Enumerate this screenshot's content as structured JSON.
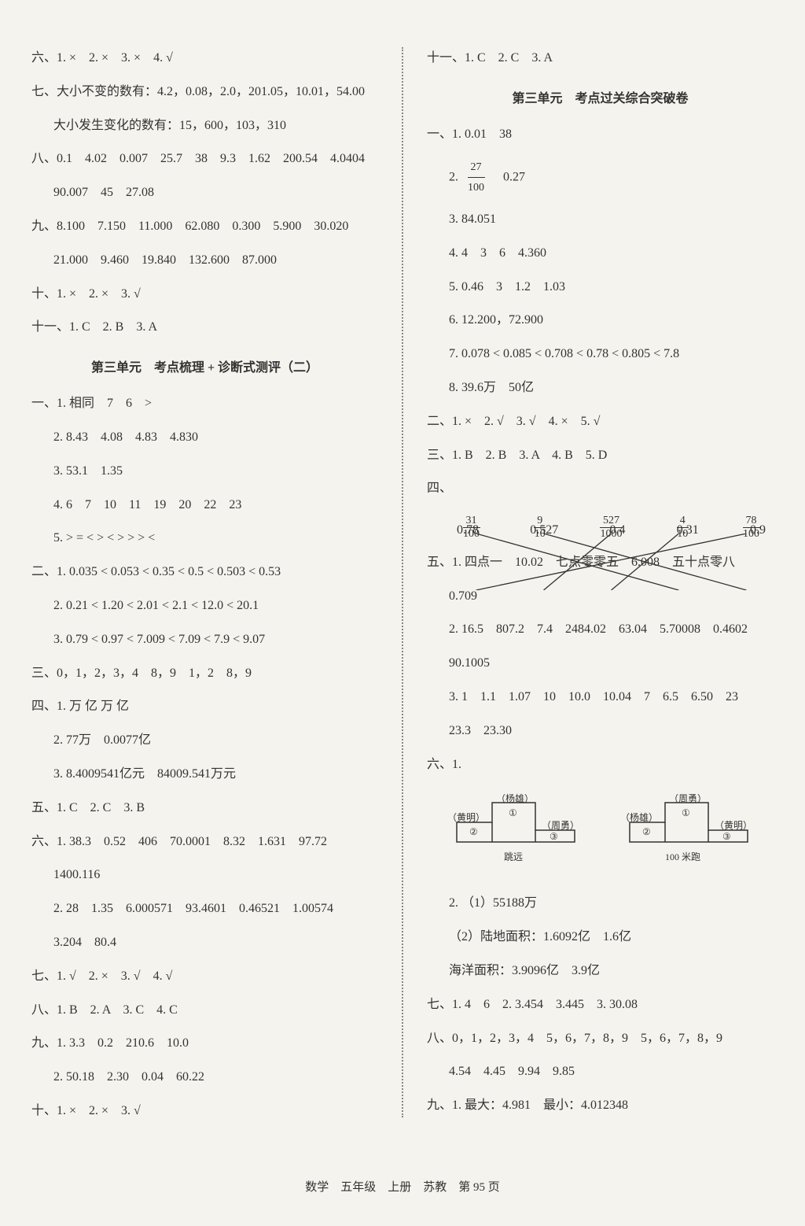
{
  "left": {
    "l1": "六、1. ×　2. ×　3. ×　4. √",
    "l2": "七、大小不变的数有：4.2，0.08，2.0，201.05，10.01，54.00",
    "l3": "大小发生变化的数有：15，600，103，310",
    "l4": "八、0.1　4.02　0.007　25.7　38　9.3　1.62　200.54　4.0404",
    "l5": "90.007　45　27.08",
    "l6": "九、8.100　7.150　11.000　62.080　0.300　5.900　30.020",
    "l7": "21.000　9.460　19.840　132.600　87.000",
    "l8": "十、1. ×　2. ×　3. √",
    "l9": "十一、1. C　2. B　3. A",
    "title1": "第三单元　考点梳理 + 诊断式测评（二）",
    "l10": "一、1. 相同　7　6　>",
    "l11": "2. 8.43　4.08　4.83　4.830",
    "l12": "3. 53.1　1.35",
    "l13": "4. 6　7　10　11　19　20　22　23",
    "l14": "5. > = < > < > > > <",
    "l15": "二、1. 0.035 < 0.053 < 0.35 < 0.5 < 0.503 < 0.53",
    "l16": "2. 0.21 < 1.20 < 2.01 < 2.1 < 12.0 < 20.1",
    "l17": "3. 0.79 < 0.97 < 7.009 < 7.09 < 7.9 < 9.07",
    "l18": "三、0，1，2，3，4　8，9　1，2　8，9",
    "l19": "四、1. 万 亿 万 亿",
    "l20": "2. 77万　0.0077亿",
    "l21": "3. 8.4009541亿元　84009.541万元",
    "l22": "五、1. C　2. C　3. B",
    "l23": "六、1. 38.3　0.52　406　70.0001　8.32　1.631　97.72",
    "l24": "1400.116",
    "l25": "2. 28　1.35　6.000571　93.4601　0.46521　1.00574",
    "l26": "3.204　80.4",
    "l27": "七、1. √　2. ×　3. √　4. √",
    "l28": "八、1. B　2. A　3. C　4. C",
    "l29": "九、1. 3.3　0.2　210.6　10.0",
    "l30": "2. 50.18　2.30　0.04　60.22",
    "l31": "十、1. ×　2. ×　3. √"
  },
  "right": {
    "r1": "十一、1. C　2. C　3. A",
    "title2": "第三单元　考点过关综合突破卷",
    "r2": "一、1. 0.01　38",
    "frac1_num": "27",
    "frac1_den": "100",
    "r3b": "　0.27",
    "r4": "3. 84.051",
    "r5": "4. 4　3　6　4.360",
    "r6": "5. 0.46　3　1.2　1.03",
    "r7": "6. 12.200，72.900",
    "r8": "7. 0.078 < 0.085 < 0.708 < 0.78 < 0.805 < 7.8",
    "r9": "8. 39.6万　50亿",
    "r10": "二、1. ×　2. √　3. √　4. ×　5. √",
    "r11": "三、1. B　2. B　3. A　4. B　5. D",
    "matching": {
      "top": [
        {
          "num": "31",
          "den": "100"
        },
        {
          "num": "9",
          "den": "10"
        },
        {
          "num": "527",
          "den": "1000"
        },
        {
          "num": "4",
          "den": "10"
        },
        {
          "num": "78",
          "den": "100"
        }
      ],
      "bot": [
        "0.78",
        "0.527",
        "0.4",
        "0.31",
        "0.9"
      ],
      "lines": [
        [
          0,
          3
        ],
        [
          1,
          4
        ],
        [
          2,
          1
        ],
        [
          3,
          2
        ],
        [
          4,
          0
        ]
      ]
    },
    "r12_label": "四、",
    "r13": "五、1. 四点一　10.02　七点零零五　6.008　五十点零八",
    "r14": "0.709",
    "r15": "2. 16.5　807.2　7.4　2484.02　63.04　5.70008　0.4602",
    "r16": "90.1005",
    "r17": "3. 1　1.1　1.07　10　10.0　10.04　7　6.5　6.50　23",
    "r18": "23.3　23.30",
    "r19": "六、1.",
    "diagram1": {
      "title": "跳远",
      "labels": {
        "p1": "（黄明）",
        "p2": "（杨雄）",
        "p3": "（周勇）",
        "c1": "①",
        "c2": "②",
        "c3": "③"
      }
    },
    "diagram2": {
      "title": "100 米跑",
      "labels": {
        "p1": "（杨雄）",
        "p2": "（周勇）",
        "p3": "（黄明）",
        "c1": "①",
        "c2": "②",
        "c3": "③"
      }
    },
    "r20": "2. （1）55188万",
    "r21": "（2）陆地面积：1.6092亿　1.6亿",
    "r22": "海洋面积：3.9096亿　3.9亿",
    "r23": "七、1. 4　6　2. 3.454　3.445　3. 30.08",
    "r24": "八、0，1，2，3，4　5，6，7，8，9　5，6，7，8，9",
    "r25": "4.54　4.45　9.94　9.85",
    "r26": "九、1. 最大：4.981　最小：4.012348"
  },
  "footer": "数学　五年级　上册　苏教　第 95 页",
  "colors": {
    "text": "#333333",
    "bg": "#f5f3ee",
    "line": "#333333"
  }
}
